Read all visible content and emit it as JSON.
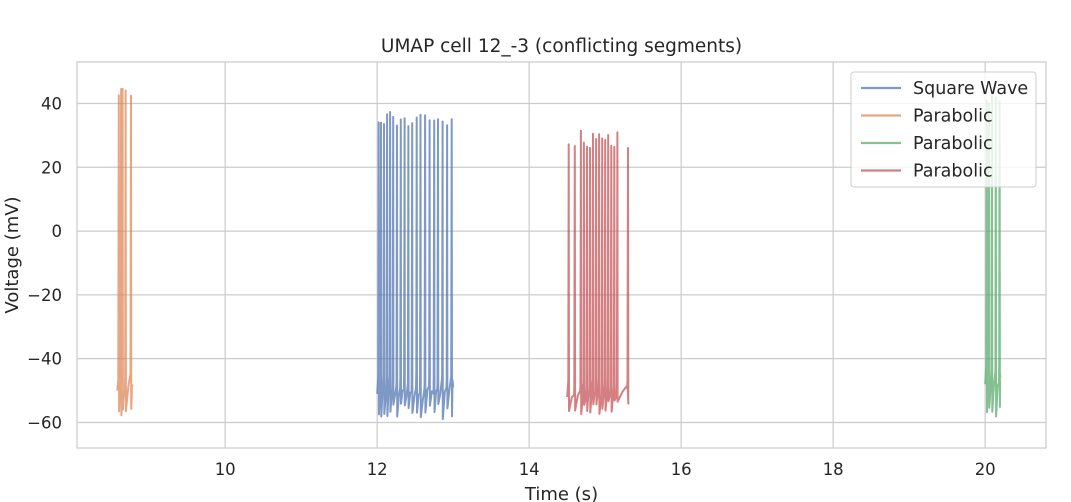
{
  "chart_data": {
    "type": "line",
    "title": "UMAP cell 12_-3 (conflicting segments)",
    "xlabel": "Time (s)",
    "ylabel": "Voltage (mV)",
    "xlim": [
      8.05,
      20.8
    ],
    "ylim": [
      -68,
      53
    ],
    "xticks": [
      10,
      12,
      14,
      16,
      18,
      20
    ],
    "yticks": [
      -60,
      -40,
      -20,
      0,
      20,
      40
    ],
    "xtick_labels": [
      "10",
      "12",
      "14",
      "16",
      "18",
      "20"
    ],
    "ytick_labels": [
      "−60",
      "−40",
      "−20",
      "0",
      "20",
      "40"
    ],
    "grid": true,
    "legend_position": "top-right",
    "series": [
      {
        "name": "Square Wave",
        "color": "#4c72b0",
        "t_start": 12.0,
        "t_end": 13.0,
        "spike_times": [
          12.02,
          12.05,
          12.09,
          12.13,
          12.17,
          12.21,
          12.26,
          12.31,
          12.36,
          12.41,
          12.46,
          12.52,
          12.57,
          12.63,
          12.69,
          12.75,
          12.8,
          12.86,
          12.92,
          12.98
        ],
        "peak_mV": 38,
        "trough_mV": -59,
        "rest_mV": -51
      },
      {
        "name": "Parabolic",
        "color": "#dd8452",
        "t_start": 8.58,
        "t_end": 8.78,
        "spike_times": [
          8.6,
          8.63,
          8.65,
          8.69,
          8.76
        ],
        "peak_mV": 46,
        "trough_mV": -60,
        "rest_mV": -50
      },
      {
        "name": "Parabolic",
        "color": "#55a868",
        "t_start": 20.0,
        "t_end": 20.2,
        "spike_times": [
          20.02,
          20.05,
          20.09,
          20.14,
          20.19
        ],
        "peak_mV": 44,
        "trough_mV": -60,
        "rest_mV": -48
      },
      {
        "name": "Parabolic",
        "color": "#c44e52",
        "t_start": 14.5,
        "t_end": 15.3,
        "spike_times": [
          14.52,
          14.6,
          14.68,
          14.72,
          14.76,
          14.8,
          14.84,
          14.88,
          14.92,
          14.96,
          15.0,
          15.04,
          15.08,
          15.12,
          15.16,
          15.3
        ],
        "peak_mV": 32,
        "trough_mV": -58,
        "rest_mV": -52
      }
    ]
  }
}
